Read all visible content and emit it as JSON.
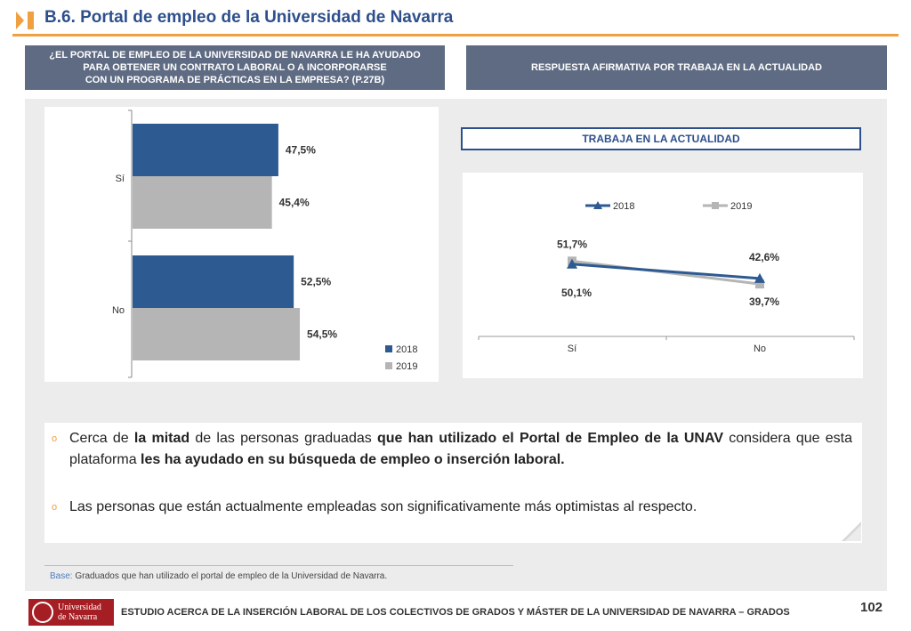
{
  "header": {
    "title": "B.6. Portal de empleo de la Universidad de Navarra",
    "accent_color": "#f0a040",
    "title_color": "#2d4f8c"
  },
  "question_left": {
    "line1": "¿EL PORTAL DE EMPLEO DE LA UNIVERSIDAD DE NAVARRA LE HA AYUDADO",
    "line2": "PARA OBTENER UN CONTRATO LABORAL O A INCORPORARSE",
    "line3": "CON UN PROGRAMA DE PRÁCTICAS EN LA EMPRESA? (P.27B)"
  },
  "question_right": {
    "text": "RESPUESTA AFIRMATIVA POR TRABAJA EN LA ACTUALIDAD"
  },
  "line_chart_title": "TRABAJA EN LA ACTUALIDAD",
  "chart_data": [
    {
      "type": "bar",
      "orientation": "horizontal",
      "categories": [
        "Sí",
        "No"
      ],
      "series": [
        {
          "name": "2018",
          "values": [
            47.5,
            52.5
          ],
          "labels": [
            "47,5%",
            "52,5%"
          ],
          "color": "#2d5a91"
        },
        {
          "name": "2019",
          "values": [
            45.4,
            54.5
          ],
          "labels": [
            "45,4%",
            "54,5%"
          ],
          "color": "#b5b5b5"
        }
      ],
      "legend": "bottom-right",
      "grid": false
    },
    {
      "type": "line",
      "categories": [
        "Sí",
        "No"
      ],
      "series": [
        {
          "name": "2018",
          "values": [
            50.1,
            42.6
          ],
          "labels": [
            "50,1%",
            "42,6%"
          ],
          "color": "#2d5a91",
          "marker": "triangle"
        },
        {
          "name": "2019",
          "values": [
            51.7,
            39.7
          ],
          "labels": [
            "51,7%",
            "39,7%"
          ],
          "color": "#b5b5b5",
          "marker": "square"
        }
      ],
      "legend": "top",
      "grid": false
    }
  ],
  "bullets": {
    "b1_p1": "Cerca de ",
    "b1_b1": "la mitad",
    "b1_p2": " de las personas graduadas ",
    "b1_b2": "que han utilizado el Portal de Empleo de la UNAV",
    "b1_p3": " considera que esta plataforma ",
    "b1_b3": "les ha ayudado en su búsqueda de empleo o inserción laboral.",
    "b2": "Las personas que están actualmente empleadas son significativamente más optimistas al respecto.",
    "mark": "o"
  },
  "footer": {
    "base_label": "Base:",
    "base_text": " Graduados que han utilizado el portal de empleo de la Universidad de Navarra.",
    "logo_line1": "Universidad",
    "logo_line2": "de Navarra",
    "study_title": "ESTUDIO ACERCA DE LA INSERCIÓN LABORAL DE LOS COLECTIVOS DE GRADOS Y MÁSTER DE LA UNIVERSIDAD DE NAVARRA – GRADOS",
    "page_number": "102"
  }
}
